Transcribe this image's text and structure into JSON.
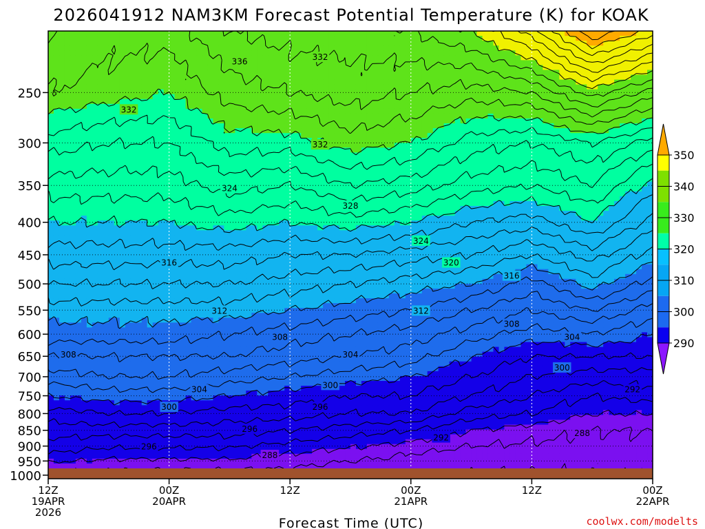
{
  "chart_data": {
    "type": "heatmap",
    "title": "2026041912 NAM3KM Forecast Potential Temperature (K) for KOAK",
    "xlabel": "Forecast Time (UTC)",
    "ylabel": "",
    "credit": "coolwx.com/modelts",
    "x_ticks": [
      {
        "l1": "12Z",
        "l2": "19APR",
        "l3": "2026"
      },
      {
        "l1": "00Z",
        "l2": "20APR",
        "l3": ""
      },
      {
        "l1": "12Z",
        "l2": "",
        "l3": ""
      },
      {
        "l1": "00Z",
        "l2": "21APR",
        "l3": ""
      },
      {
        "l1": "12Z",
        "l2": "",
        "l3": ""
      },
      {
        "l1": "00Z",
        "l2": "22APR",
        "l3": ""
      }
    ],
    "x_range_hours": [
      0,
      60
    ],
    "y_ticks": [
      250,
      300,
      350,
      400,
      450,
      500,
      550,
      600,
      650,
      700,
      750,
      800,
      850,
      900,
      950,
      1000
    ],
    "y_range_hpa": [
      200,
      1013
    ],
    "y_scale": "log-pressure",
    "colorbar": {
      "levels": [
        290,
        300,
        310,
        320,
        330,
        340,
        350
      ],
      "colors": [
        "#8c16ff",
        "#0a00f0",
        "#1c6af0",
        "#06a6f4",
        "#08c0ff",
        "#00ffa8",
        "#38ec1c",
        "#7ee000",
        "#ffff00",
        "#ffaa00"
      ]
    },
    "fill_colors": {
      "290-300": "#1400e8",
      "below-290": "#7b10f0",
      "300-310": "#1e6cec",
      "310-320": "#12b4f0",
      "320-330": "#00ffa0",
      "330-340": "#5ee31a",
      "340-350": "#f0f000",
      "above-350": "#ffaa00",
      "ground": "#a0522d"
    },
    "contour_labels": [
      "332",
      "336",
      "332",
      "332",
      "324",
      "328",
      "324",
      "320",
      "316",
      "316",
      "312",
      "312",
      "308",
      "308",
      "304",
      "304",
      "308",
      "300",
      "304",
      "300",
      "296",
      "300",
      "296",
      "292",
      "296",
      "292",
      "288",
      "288"
    ],
    "isentrope_interval_K": 2,
    "profile_times_h": [
      0,
      6,
      12,
      18,
      24,
      30,
      36,
      42,
      48,
      54,
      60
    ],
    "profile_pressures_hpa": [
      1000,
      925,
      850,
      800,
      750,
      700,
      650,
      600,
      550,
      500,
      450,
      400,
      350,
      300,
      250,
      200
    ],
    "profiles_K": [
      [
        287,
        292,
        295,
        297,
        300,
        303,
        306,
        309,
        311,
        314,
        317,
        320,
        323,
        327,
        332,
        334
      ],
      [
        287,
        291,
        295,
        298,
        301,
        304,
        306,
        309,
        311,
        314,
        317,
        320,
        323,
        326,
        331,
        333
      ],
      [
        287,
        291,
        295,
        298,
        301,
        304,
        306,
        309,
        311,
        314,
        317,
        320,
        323,
        326,
        330,
        333
      ],
      [
        287,
        291,
        295,
        297,
        300,
        303,
        306,
        308,
        311,
        314,
        317,
        321,
        325,
        329,
        333,
        336
      ],
      [
        287,
        290,
        294,
        297,
        299,
        302,
        305,
        307,
        310,
        313,
        316,
        320,
        324,
        329,
        334,
        337
      ],
      [
        286,
        289,
        293,
        296,
        298,
        301,
        304,
        306,
        309,
        312,
        316,
        321,
        326,
        331,
        335,
        337
      ],
      [
        286,
        288,
        292,
        296,
        298,
        300,
        303,
        305,
        308,
        311,
        315,
        320,
        325,
        330,
        334,
        338
      ],
      [
        286,
        287,
        290,
        293,
        296,
        298,
        300,
        303,
        306,
        310,
        314,
        318,
        323,
        327,
        333,
        340
      ],
      [
        286,
        287,
        289,
        292,
        294,
        296,
        298,
        301,
        304,
        307,
        312,
        317,
        322,
        326,
        334,
        345
      ],
      [
        286,
        287,
        288,
        290,
        292,
        295,
        298,
        302,
        306,
        311,
        315,
        320,
        324,
        328,
        339,
        354
      ],
      [
        286,
        287,
        288,
        290,
        293,
        295,
        298,
        300,
        303,
        307,
        311,
        315,
        319,
        325,
        335,
        349
      ]
    ]
  }
}
